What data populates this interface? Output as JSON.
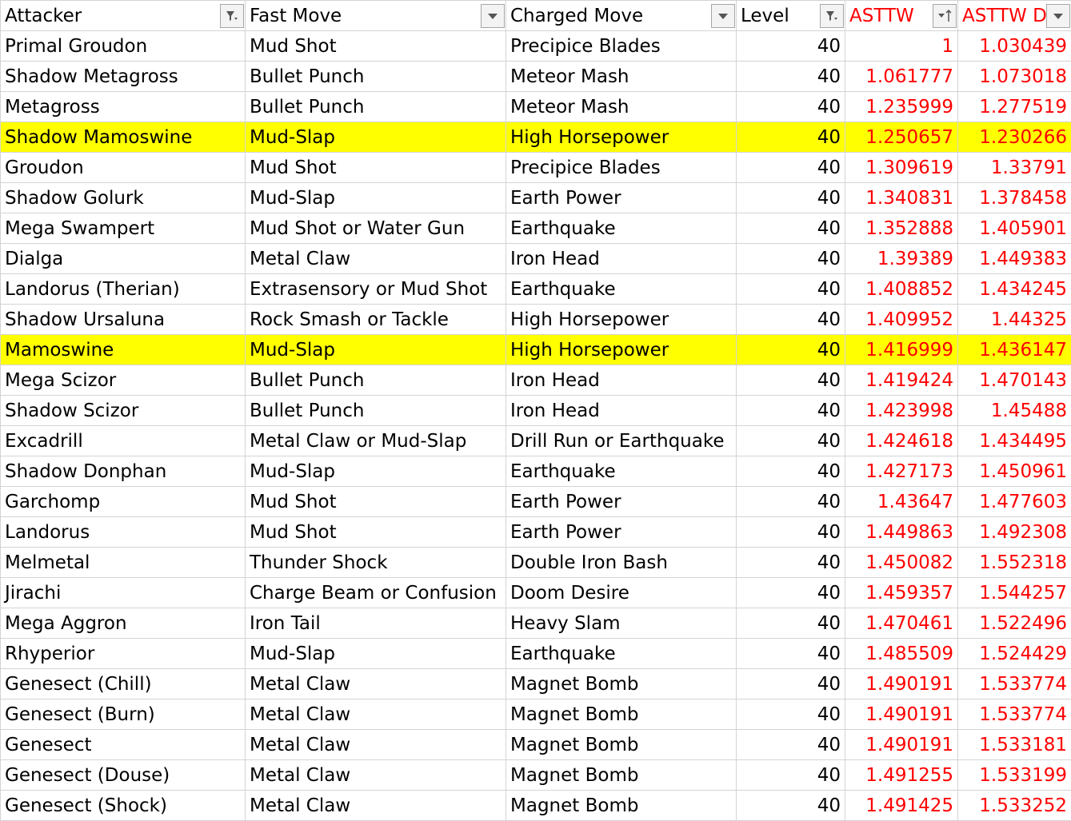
{
  "sheet": {
    "highlight_color": "#ffff00",
    "value_color": "#ff0000",
    "headers": [
      {
        "label": "Attacker",
        "filter": "filter-active-icon"
      },
      {
        "label": "Fast Move",
        "filter": "dropdown-icon"
      },
      {
        "label": "Charged Move",
        "filter": "dropdown-icon"
      },
      {
        "label": "Level",
        "filter": "filter-active-icon"
      },
      {
        "label": "ASTTW",
        "filter": "sort-ascending-icon"
      },
      {
        "label": "ASTTW D",
        "filter": "dropdown-icon"
      }
    ],
    "rows": [
      {
        "attacker": "Primal Groudon",
        "fast": "Mud Shot",
        "charged": "Precipice Blades",
        "level": "40",
        "asttw": "1",
        "asttw_d": "1.030439",
        "highlight": false
      },
      {
        "attacker": "Shadow Metagross",
        "fast": "Bullet Punch",
        "charged": "Meteor Mash",
        "level": "40",
        "asttw": "1.061777",
        "asttw_d": "1.073018",
        "highlight": false
      },
      {
        "attacker": "Metagross",
        "fast": "Bullet Punch",
        "charged": "Meteor Mash",
        "level": "40",
        "asttw": "1.235999",
        "asttw_d": "1.277519",
        "highlight": false
      },
      {
        "attacker": "Shadow Mamoswine",
        "fast": "Mud-Slap",
        "charged": "High Horsepower",
        "level": "40",
        "asttw": "1.250657",
        "asttw_d": "1.230266",
        "highlight": true
      },
      {
        "attacker": "Groudon",
        "fast": "Mud Shot",
        "charged": "Precipice Blades",
        "level": "40",
        "asttw": "1.309619",
        "asttw_d": "1.33791",
        "highlight": false
      },
      {
        "attacker": "Shadow Golurk",
        "fast": "Mud-Slap",
        "charged": "Earth Power",
        "level": "40",
        "asttw": "1.340831",
        "asttw_d": "1.378458",
        "highlight": false
      },
      {
        "attacker": "Mega Swampert",
        "fast": "Mud Shot or Water Gun",
        "charged": "Earthquake",
        "level": "40",
        "asttw": "1.352888",
        "asttw_d": "1.405901",
        "highlight": false
      },
      {
        "attacker": "Dialga",
        "fast": "Metal Claw",
        "charged": "Iron Head",
        "level": "40",
        "asttw": "1.39389",
        "asttw_d": "1.449383",
        "highlight": false
      },
      {
        "attacker": "Landorus (Therian)",
        "fast": "Extrasensory or Mud Shot",
        "charged": "Earthquake",
        "level": "40",
        "asttw": "1.408852",
        "asttw_d": "1.434245",
        "highlight": false
      },
      {
        "attacker": "Shadow Ursaluna",
        "fast": "Rock Smash or Tackle",
        "charged": "High Horsepower",
        "level": "40",
        "asttw": "1.409952",
        "asttw_d": "1.44325",
        "highlight": false
      },
      {
        "attacker": "Mamoswine",
        "fast": "Mud-Slap",
        "charged": "High Horsepower",
        "level": "40",
        "asttw": "1.416999",
        "asttw_d": "1.436147",
        "highlight": true
      },
      {
        "attacker": "Mega Scizor",
        "fast": "Bullet Punch",
        "charged": "Iron Head",
        "level": "40",
        "asttw": "1.419424",
        "asttw_d": "1.470143",
        "highlight": false
      },
      {
        "attacker": "Shadow Scizor",
        "fast": "Bullet Punch",
        "charged": "Iron Head",
        "level": "40",
        "asttw": "1.423998",
        "asttw_d": "1.45488",
        "highlight": false
      },
      {
        "attacker": "Excadrill",
        "fast": "Metal Claw or Mud-Slap",
        "charged": "Drill Run or Earthquake",
        "level": "40",
        "asttw": "1.424618",
        "asttw_d": "1.434495",
        "highlight": false
      },
      {
        "attacker": "Shadow Donphan",
        "fast": "Mud-Slap",
        "charged": "Earthquake",
        "level": "40",
        "asttw": "1.427173",
        "asttw_d": "1.450961",
        "highlight": false
      },
      {
        "attacker": "Garchomp",
        "fast": "Mud Shot",
        "charged": "Earth Power",
        "level": "40",
        "asttw": "1.43647",
        "asttw_d": "1.477603",
        "highlight": false
      },
      {
        "attacker": "Landorus",
        "fast": "Mud Shot",
        "charged": "Earth Power",
        "level": "40",
        "asttw": "1.449863",
        "asttw_d": "1.492308",
        "highlight": false
      },
      {
        "attacker": "Melmetal",
        "fast": "Thunder Shock",
        "charged": "Double Iron Bash",
        "level": "40",
        "asttw": "1.450082",
        "asttw_d": "1.552318",
        "highlight": false
      },
      {
        "attacker": "Jirachi",
        "fast": "Charge Beam or Confusion",
        "charged": "Doom Desire",
        "level": "40",
        "asttw": "1.459357",
        "asttw_d": "1.544257",
        "highlight": false
      },
      {
        "attacker": "Mega Aggron",
        "fast": "Iron Tail",
        "charged": "Heavy Slam",
        "level": "40",
        "asttw": "1.470461",
        "asttw_d": "1.522496",
        "highlight": false
      },
      {
        "attacker": "Rhyperior",
        "fast": "Mud-Slap",
        "charged": "Earthquake",
        "level": "40",
        "asttw": "1.485509",
        "asttw_d": "1.524429",
        "highlight": false
      },
      {
        "attacker": "Genesect (Chill)",
        "fast": "Metal Claw",
        "charged": "Magnet Bomb",
        "level": "40",
        "asttw": "1.490191",
        "asttw_d": "1.533774",
        "highlight": false
      },
      {
        "attacker": "Genesect (Burn)",
        "fast": "Metal Claw",
        "charged": "Magnet Bomb",
        "level": "40",
        "asttw": "1.490191",
        "asttw_d": "1.533774",
        "highlight": false
      },
      {
        "attacker": "Genesect",
        "fast": "Metal Claw",
        "charged": "Magnet Bomb",
        "level": "40",
        "asttw": "1.490191",
        "asttw_d": "1.533181",
        "highlight": false
      },
      {
        "attacker": "Genesect (Douse)",
        "fast": "Metal Claw",
        "charged": "Magnet Bomb",
        "level": "40",
        "asttw": "1.491255",
        "asttw_d": "1.533199",
        "highlight": false
      },
      {
        "attacker": "Genesect (Shock)",
        "fast": "Metal Claw",
        "charged": "Magnet Bomb",
        "level": "40",
        "asttw": "1.491425",
        "asttw_d": "1.533252",
        "highlight": false
      }
    ]
  }
}
